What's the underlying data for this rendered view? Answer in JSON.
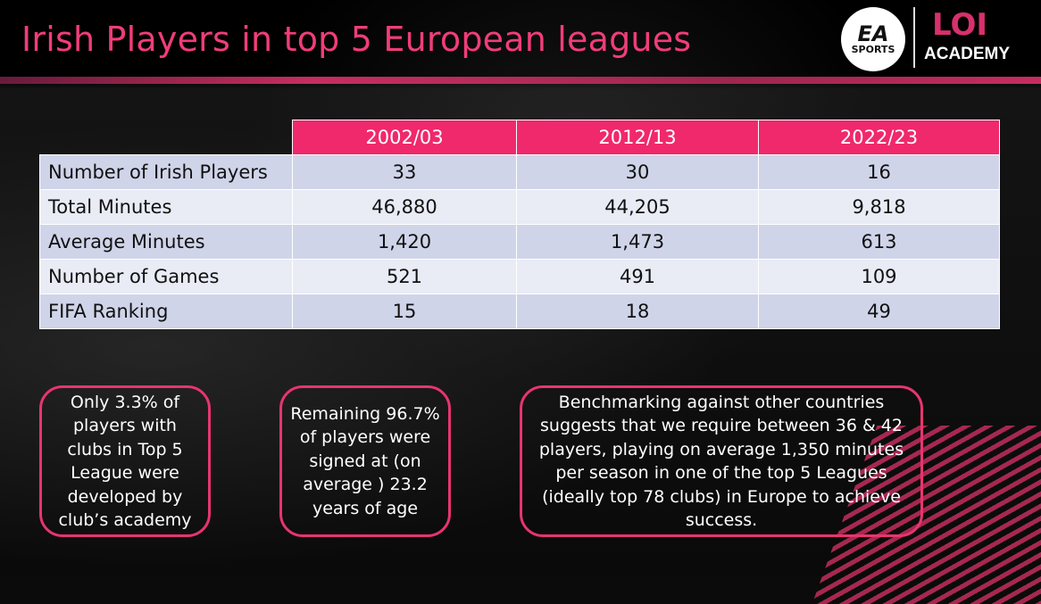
{
  "title": "Irish Players in top 5 European leagues",
  "logos": {
    "ea": {
      "line1": "EA",
      "line2": "SPORTS"
    },
    "loi": {
      "line1": "LOI",
      "line2": "ACADEMY"
    }
  },
  "colors": {
    "accent": "#f0286c",
    "title": "#f03d79",
    "row_odd": "#cfd4e9",
    "row_even": "#e9ebf5"
  },
  "table": {
    "columns": [
      "2002/03",
      "2012/13",
      "2022/23"
    ],
    "rows": [
      {
        "label": "Number of Irish Players",
        "values": [
          "33",
          "30",
          "16"
        ]
      },
      {
        "label": "Total Minutes",
        "values": [
          "46,880",
          "44,205",
          "9,818"
        ]
      },
      {
        "label": "Average Minutes",
        "values": [
          "1,420",
          "1,473",
          "613"
        ]
      },
      {
        "label": "Number of Games",
        "values": [
          "521",
          "491",
          "109"
        ]
      },
      {
        "label": "FIFA Ranking",
        "values": [
          "15",
          "18",
          "49"
        ]
      }
    ]
  },
  "boxes": [
    "Only 3.3% of players with clubs in Top 5 League were developed by club’s academy",
    "Remaining 96.7% of players were signed at (on average ) 23.2 years of age",
    "Benchmarking against other countries suggests that we require between 36 & 42 players, playing on average 1,350 minutes per season in one of the top 5 Leagues (ideally top 78 clubs) in Europe to achieve success."
  ]
}
